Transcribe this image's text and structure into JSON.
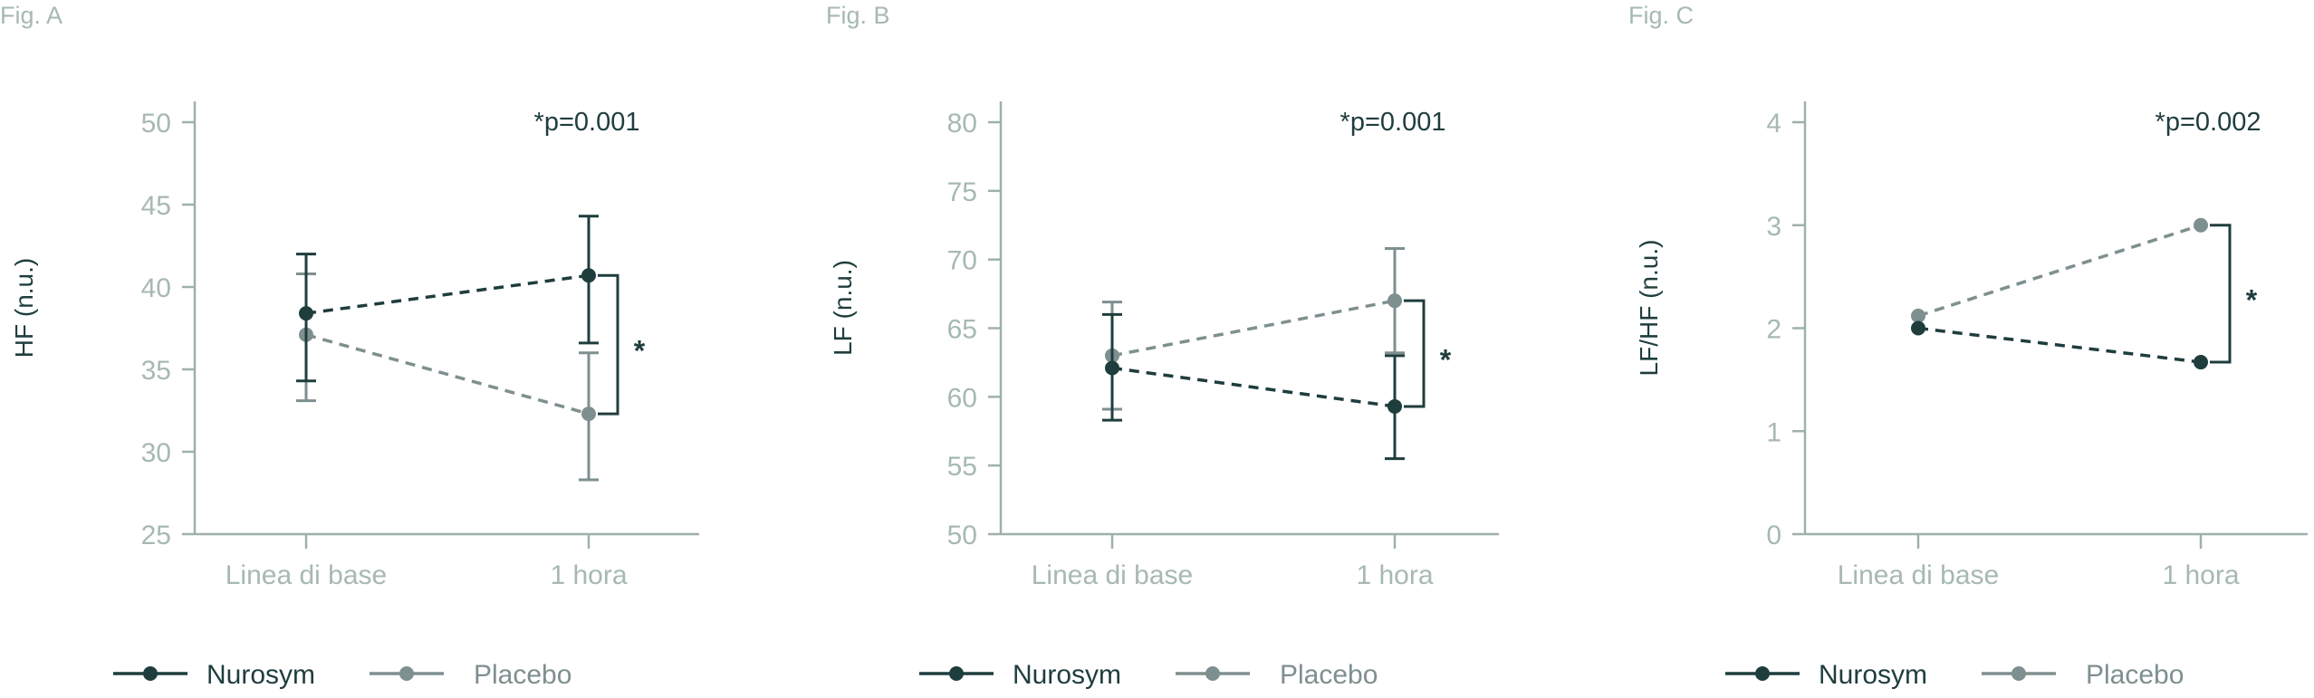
{
  "colors": {
    "nurosym": "#1f3d3d",
    "placebo": "#7e8f8f",
    "axis": "#9eb0ad",
    "tick_text": "#a7b8b5",
    "annotation": "#1f3d3d"
  },
  "legend": {
    "nurosym": "Nurosym",
    "placebo": "Placebo"
  },
  "chart_data": [
    {
      "type": "line",
      "fig_label": "Fig. A",
      "title": "",
      "xlabel": "",
      "ylabel": "HF (n.u.)",
      "categories": [
        "Linea di base",
        "1 hora"
      ],
      "ylim": [
        25,
        50
      ],
      "yticks": [
        25,
        30,
        35,
        40,
        45,
        50
      ],
      "yticklabels": [
        "25",
        "30",
        "35",
        "40",
        "45",
        "50"
      ],
      "annotation": "*p=0.001",
      "significance_marker": "*",
      "series": [
        {
          "name": "Nurosym",
          "values": [
            38.4,
            40.7
          ],
          "err_low": [
            34.3,
            36.6
          ],
          "err_high": [
            42.0,
            44.3
          ]
        },
        {
          "name": "Placebo",
          "values": [
            37.1,
            32.3
          ],
          "err_low": [
            33.1,
            28.3
          ],
          "err_high": [
            40.8,
            36.0
          ]
        }
      ]
    },
    {
      "type": "line",
      "fig_label": "Fig. B",
      "title": "",
      "xlabel": "",
      "ylabel": "LF (n.u.)",
      "categories": [
        "Linea di base",
        "1 hora"
      ],
      "ylim": [
        50,
        80
      ],
      "yticks": [
        50,
        55,
        60,
        65,
        70,
        75,
        80
      ],
      "yticklabels": [
        "50",
        "55",
        "60",
        "65",
        "70",
        "75",
        "80"
      ],
      "annotation": "*p=0.001",
      "significance_marker": "*",
      "series": [
        {
          "name": "Nurosym",
          "values": [
            62.1,
            59.3
          ],
          "err_low": [
            58.3,
            55.5
          ],
          "err_high": [
            66.0,
            63.0
          ]
        },
        {
          "name": "Placebo",
          "values": [
            63.0,
            67.0
          ],
          "err_low": [
            59.1,
            63.2
          ],
          "err_high": [
            66.9,
            70.8
          ]
        }
      ]
    },
    {
      "type": "line",
      "fig_label": "Fig. C",
      "title": "",
      "xlabel": "",
      "ylabel": "LF/HF (n.u.)",
      "categories": [
        "Linea di base",
        "1 hora"
      ],
      "ylim": [
        0,
        4
      ],
      "yticks": [
        0,
        1,
        2,
        3,
        4
      ],
      "yticklabels": [
        "0",
        "1",
        "2",
        "3",
        "4"
      ],
      "annotation": "*p=0.002",
      "significance_marker": "*",
      "series": [
        {
          "name": "Nurosym",
          "values": [
            2.0,
            1.67
          ]
        },
        {
          "name": "Placebo",
          "values": [
            2.12,
            3.0
          ]
        }
      ]
    }
  ]
}
